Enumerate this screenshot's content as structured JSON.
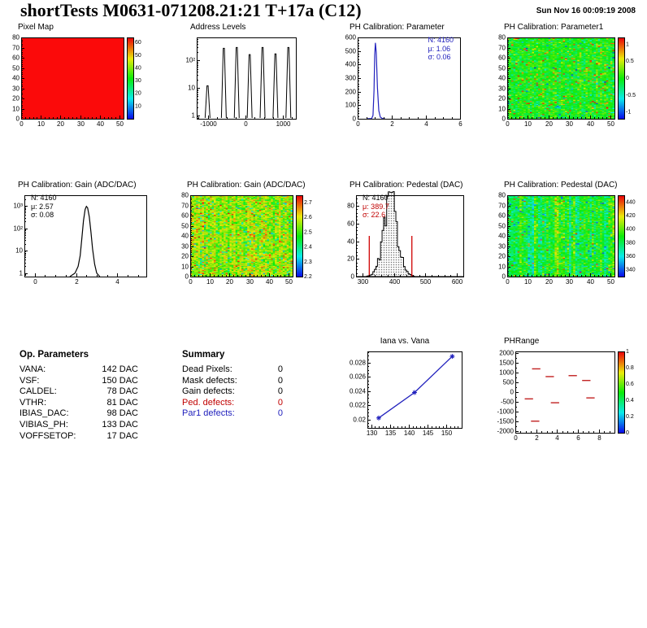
{
  "header": {
    "title": "shortTests M0631-071208.21:21 T+17a (C12)",
    "timestamp": "Sun Nov 16 00:09:19 2008"
  },
  "op_parameters": {
    "title": "Op. Parameters",
    "rows": [
      {
        "label": "VANA:",
        "value": "142 DAC"
      },
      {
        "label": "VSF:",
        "value": "150 DAC"
      },
      {
        "label": "CALDEL:",
        "value": "78 DAC"
      },
      {
        "label": "VTHR:",
        "value": "81 DAC"
      },
      {
        "label": "IBIAS_DAC:",
        "value": "98 DAC"
      },
      {
        "label": "VIBIAS_PH:",
        "value": "133 DAC"
      },
      {
        "label": "VOFFSETOP:",
        "value": "17 DAC"
      }
    ]
  },
  "summary": {
    "title": "Summary",
    "rows": [
      {
        "label": "Dead Pixels:",
        "value": "0",
        "color": "#000000"
      },
      {
        "label": "Mask defects:",
        "value": "0",
        "color": "#000000"
      },
      {
        "label": "Gain defects:",
        "value": "0",
        "color": "#000000"
      },
      {
        "label": "Ped. defects:",
        "value": "0",
        "color": "#c00000"
      },
      {
        "label": "Par1 defects:",
        "value": "0",
        "color": "#2121bd"
      }
    ]
  },
  "chart_data": [
    {
      "id": "pixel-map",
      "type": "heatmap",
      "title": "Pixel Map",
      "x_range": [
        0,
        52
      ],
      "x_ticks": [
        0,
        10,
        20,
        30,
        40,
        50
      ],
      "x_minor": 2,
      "y_range": [
        0,
        80
      ],
      "y_ticks": [
        0,
        10,
        20,
        30,
        40,
        50,
        60,
        70,
        80
      ],
      "y_minor": 2,
      "noise": {
        "mode": "solid",
        "color": "#fb0a0a"
      },
      "colorbar": {
        "range": [
          0,
          64
        ],
        "ticks": [
          10,
          20,
          30,
          40,
          50,
          60
        ]
      },
      "ml": 20,
      "seed": 3
    },
    {
      "id": "address-levels",
      "type": "spikes",
      "title": "Address Levels",
      "x_range": [
        -1300,
        1350
      ],
      "x_ticks": [
        -1000,
        0,
        1000
      ],
      "x_minor": 250,
      "y_log": true,
      "y_range": [
        0.75,
        700
      ],
      "spikes": [
        [
          -1010,
          12
        ],
        [
          -575,
          280
        ],
        [
          -230,
          300
        ],
        [
          115,
          165
        ],
        [
          460,
          300
        ],
        [
          805,
          175
        ],
        [
          1150,
          300
        ]
      ],
      "ml": 24,
      "seed": 7
    },
    {
      "id": "ph-calibration-parameter",
      "type": "curve",
      "title": "PH Calibration: Parameter",
      "color": "#2121bd",
      "x_range": [
        0,
        6
      ],
      "x_ticks": [
        0,
        2,
        4,
        6
      ],
      "x_minor": 0.5,
      "y_range": [
        0,
        600
      ],
      "y_ticks": [
        0,
        100,
        200,
        300,
        400,
        500,
        600
      ],
      "y_minor": 20,
      "points": [
        [
          0.55,
          0
        ],
        [
          0.82,
          2
        ],
        [
          0.9,
          25
        ],
        [
          0.96,
          210
        ],
        [
          1.0,
          470
        ],
        [
          1.04,
          560
        ],
        [
          1.09,
          490
        ],
        [
          1.16,
          230
        ],
        [
          1.24,
          60
        ],
        [
          1.33,
          12
        ],
        [
          1.45,
          2
        ],
        [
          1.6,
          0
        ]
      ],
      "stats": {
        "pos": "tr",
        "lines": [
          {
            "text": "N: 4160",
            "color": "#2121bd"
          },
          {
            "text": "μ: 1.06",
            "color": "#2121bd"
          },
          {
            "text": "σ: 0.06",
            "color": "#2121bd"
          }
        ]
      },
      "ml": 26,
      "seed": 9
    },
    {
      "id": "ph-calibration-parameter1-map",
      "type": "heatmap",
      "title": "PH Calibration: Parameter1",
      "x_range": [
        0,
        52
      ],
      "x_ticks": [
        0,
        10,
        20,
        30,
        40,
        50
      ],
      "x_minor": 2,
      "y_range": [
        0,
        80
      ],
      "y_ticks": [
        0,
        10,
        20,
        30,
        40,
        50,
        60,
        70,
        80
      ],
      "y_minor": 2,
      "noise": {
        "mode": "gauss",
        "mean": 0,
        "sd": 0.18,
        "stripe_sd": 0.06,
        "speckle_prob": 0.05,
        "speckle": [
          0.55,
          1.2
        ],
        "speckle2_prob": 0.012,
        "speckle2": [
          -1.2,
          -0.55
        ]
      },
      "colorbar": {
        "range": [
          -1.2,
          1.2
        ],
        "ticks": [
          -1,
          -0.5,
          0,
          0.5,
          1
        ]
      },
      "ml": 20,
      "seed": 11
    },
    {
      "id": "ph-calibration-gain-hist",
      "type": "curve",
      "title": "PH Calibration: Gain (ADC/DAC)",
      "color": "#000000",
      "x_range": [
        -0.5,
        5.4
      ],
      "x_ticks": [
        0,
        2,
        4
      ],
      "x_minor": 0.5,
      "y_log": true,
      "y_range": [
        0.7,
        3000
      ],
      "points": [
        [
          1.7,
          0
        ],
        [
          1.95,
          1
        ],
        [
          2.1,
          2
        ],
        [
          2.2,
          6
        ],
        [
          2.28,
          35
        ],
        [
          2.36,
          220
        ],
        [
          2.44,
          700
        ],
        [
          2.5,
          950
        ],
        [
          2.56,
          820
        ],
        [
          2.64,
          330
        ],
        [
          2.72,
          70
        ],
        [
          2.8,
          12
        ],
        [
          2.9,
          2.5
        ],
        [
          3.0,
          1
        ],
        [
          3.15,
          0
        ]
      ],
      "stats": {
        "pos": "tl",
        "lines": [
          {
            "text": "N: 4160",
            "color": "#000000"
          },
          {
            "text": "μ: 2.57",
            "color": "#000000"
          },
          {
            "text": "σ: 0.08",
            "color": "#000000"
          }
        ]
      },
      "ml": 24,
      "seed": 13
    },
    {
      "id": "ph-calibration-gain-map",
      "type": "heatmap",
      "title": "PH Calibration: Gain (ADC/DAC)",
      "x_range": [
        0,
        52
      ],
      "x_ticks": [
        0,
        10,
        20,
        30,
        40,
        50
      ],
      "x_minor": 2,
      "y_range": [
        0,
        80
      ],
      "y_ticks": [
        0,
        10,
        20,
        30,
        40,
        50,
        60,
        70,
        80
      ],
      "y_minor": 2,
      "noise": {
        "mode": "gauss",
        "mean": 2.56,
        "sd": 0.05,
        "stripe_sd": 0.025,
        "speckle_prob": 0.06,
        "speckle": [
          2.28,
          2.45
        ],
        "speckle2_prob": 0.015,
        "speckle2": [
          2.7,
          2.75
        ]
      },
      "colorbar": {
        "range": [
          2.2,
          2.75
        ],
        "ticks": [
          2.2,
          2.3,
          2.4,
          2.5,
          2.6,
          2.7
        ]
      },
      "ml": 20,
      "seed": 23
    },
    {
      "id": "ph-calibration-pedestal-hist",
      "type": "hist_gauss",
      "title": "PH Calibration: Pedestal (DAC)",
      "mean": 389.7,
      "sigma": 22.6,
      "peak": 82,
      "bins": 70,
      "x_range": [
        280,
        620
      ],
      "x_ticks": [
        300,
        400,
        500,
        600
      ],
      "x_minor": 20,
      "y_range": [
        0,
        92
      ],
      "y_ticks": [
        0,
        20,
        40,
        60,
        80
      ],
      "y_minor": 4,
      "red_lines": [
        [
          322,
          46
        ],
        [
          457,
          46
        ]
      ],
      "stats": {
        "pos": "tl",
        "lines": [
          {
            "text": "N: 4160",
            "color": "#000000"
          },
          {
            "text": "μ: 389.7",
            "color": "#c00000"
          },
          {
            "text": "σ: 22.6",
            "color": "#c00000"
          }
        ]
      },
      "ml": 24,
      "seed": 31
    },
    {
      "id": "ph-calibration-pedestal-map",
      "type": "heatmap",
      "title": "PH Calibration: Pedestal (DAC)",
      "x_range": [
        0,
        52
      ],
      "x_ticks": [
        0,
        10,
        20,
        30,
        40,
        50
      ],
      "x_minor": 2,
      "y_range": [
        0,
        80
      ],
      "y_ticks": [
        0,
        10,
        20,
        30,
        40,
        50,
        60,
        70,
        80
      ],
      "y_minor": 2,
      "noise": {
        "mode": "gauss",
        "mean": 388,
        "sd": 10,
        "stripe_sd": 9,
        "speckle_prob": 0.02,
        "speckle": [
          338,
          358
        ],
        "speckle2_prob": 0.008,
        "speckle2": [
          430,
          448
        ]
      },
      "colorbar": {
        "range": [
          330,
          450
        ],
        "ticks": [
          340,
          360,
          380,
          400,
          420,
          440
        ]
      },
      "ml": 20,
      "seed": 41
    },
    {
      "id": "iana-vs-vana",
      "type": "line_points",
      "title": "Iana vs. Vana",
      "color": "#2121bd",
      "title_center": true,
      "x_range": [
        129,
        154
      ],
      "x_ticks": [
        130,
        135,
        140,
        145,
        150
      ],
      "x_minor": 1,
      "y_range": [
        0.0188,
        0.0296
      ],
      "y_ticks": [
        0.02,
        0.022,
        0.024,
        0.026,
        0.028
      ],
      "y_minor": 0.0005,
      "points": [
        [
          132,
          0.0202
        ],
        [
          141.5,
          0.0238
        ],
        [
          151.5,
          0.0289
        ]
      ],
      "ml": 32,
      "seed": 51
    },
    {
      "id": "phrange",
      "type": "segments",
      "title": "PHRange",
      "color": "#c22222",
      "x_range": [
        0,
        9.5
      ],
      "x_ticks": [
        0,
        2,
        4,
        6,
        8
      ],
      "x_minor": 0.5,
      "y_range": [
        -2100,
        2100
      ],
      "y_ticks": [
        -2000,
        -1500,
        -1000,
        -500,
        0,
        500,
        1000,
        1500,
        2000
      ],
      "y_minor": 250,
      "segments": [
        [
          1.6,
          2.4,
          1200
        ],
        [
          2.9,
          3.7,
          800
        ],
        [
          5.1,
          5.9,
          850
        ],
        [
          6.4,
          7.2,
          600
        ],
        [
          0.9,
          1.7,
          -350
        ],
        [
          3.4,
          4.2,
          -550
        ],
        [
          6.8,
          7.6,
          -300
        ],
        [
          1.5,
          2.3,
          -1500
        ]
      ],
      "colorbar": {
        "range": [
          0,
          1
        ],
        "ticks": [
          0,
          0.2,
          0.4,
          0.6,
          0.8,
          1
        ]
      },
      "ml": 30,
      "seed": 61
    }
  ]
}
